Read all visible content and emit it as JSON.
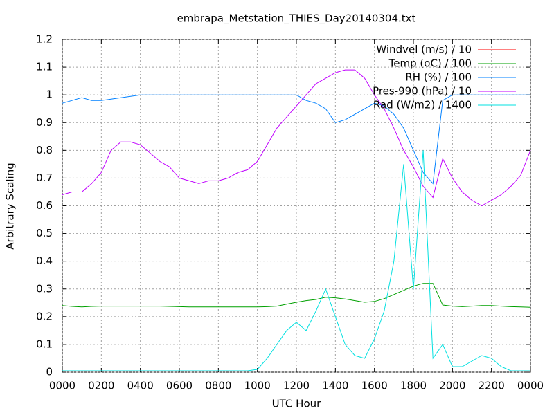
{
  "chart_data": {
    "type": "line",
    "title": "embrapa_Metstation_THIES_Day20140304.txt",
    "xlabel": "UTC Hour",
    "ylabel": "Arbitrary Scaling",
    "x": [
      0,
      0.5,
      1,
      1.5,
      2,
      2.5,
      3,
      3.5,
      4,
      4.5,
      5,
      5.5,
      6,
      6.5,
      7,
      7.5,
      8,
      8.5,
      9,
      9.5,
      10,
      10.5,
      11,
      11.5,
      12,
      12.5,
      13,
      13.5,
      14,
      14.5,
      15,
      15.5,
      16,
      16.5,
      17,
      17.5,
      18,
      18.5,
      19,
      19.5,
      20,
      20.5,
      21,
      21.5,
      22,
      22.5,
      23,
      23.5,
      24
    ],
    "series": [
      {
        "name": "Windvel (m/s) / 10",
        "color": "#ff0000",
        "values": [
          null,
          null,
          null,
          null,
          null,
          null,
          null,
          null,
          null,
          null,
          null,
          null,
          null,
          null,
          null,
          null,
          null,
          null,
          null,
          null,
          null,
          null,
          null,
          null,
          null,
          null,
          null,
          null,
          null,
          null,
          null,
          null,
          null,
          null,
          null,
          null,
          null,
          null,
          null,
          null,
          null,
          null,
          null,
          null,
          null,
          null,
          null,
          null,
          null
        ]
      },
      {
        "name": "Temp (oC) / 100",
        "color": "#00a000",
        "values": [
          0.24,
          0.237,
          0.235,
          0.237,
          0.238,
          0.238,
          0.238,
          0.238,
          0.238,
          0.238,
          0.238,
          0.237,
          0.236,
          0.235,
          0.235,
          0.235,
          0.235,
          0.235,
          0.235,
          0.235,
          0.235,
          0.236,
          0.238,
          0.245,
          0.252,
          0.258,
          0.262,
          0.27,
          0.268,
          0.264,
          0.258,
          0.252,
          0.255,
          0.265,
          0.28,
          0.295,
          0.31,
          0.32,
          0.32,
          0.242,
          0.238,
          0.236,
          0.238,
          0.24,
          0.24,
          0.238,
          0.236,
          0.235,
          0.234
        ]
      },
      {
        "name": "RH (%) / 100",
        "color": "#0080ff",
        "values": [
          0.97,
          0.98,
          0.99,
          0.98,
          0.98,
          0.985,
          0.99,
          0.995,
          1,
          1,
          1,
          1,
          1,
          1,
          1,
          1,
          1,
          1,
          1,
          1,
          1,
          1,
          1,
          1,
          1,
          0.98,
          0.97,
          0.95,
          0.9,
          0.91,
          0.93,
          0.95,
          0.97,
          0.96,
          0.93,
          0.88,
          0.8,
          0.72,
          0.68,
          0.98,
          1,
          1,
          1,
          1,
          1,
          1,
          1,
          1,
          1
        ]
      },
      {
        "name": "Pres-990 (hPa) / 10",
        "color": "#c000ff",
        "values": [
          0.64,
          0.65,
          0.65,
          0.68,
          0.72,
          0.8,
          0.83,
          0.83,
          0.82,
          0.79,
          0.76,
          0.74,
          0.7,
          0.69,
          0.68,
          0.69,
          0.69,
          0.7,
          0.72,
          0.73,
          0.76,
          0.82,
          0.88,
          0.92,
          0.96,
          1,
          1.04,
          1.06,
          1.08,
          1.09,
          1.09,
          1.06,
          1,
          0.95,
          0.88,
          0.8,
          0.74,
          0.67,
          0.63,
          0.77,
          0.7,
          0.65,
          0.62,
          0.6,
          0.62,
          0.64,
          0.67,
          0.71,
          0.8
        ]
      },
      {
        "name": "Rad (W/m2) / 1400",
        "color": "#00e0e0",
        "values": [
          0.005,
          0.005,
          0.005,
          0.005,
          0.005,
          0.005,
          0.005,
          0.005,
          0.005,
          0.005,
          0.005,
          0.005,
          0.005,
          0.005,
          0.005,
          0.005,
          0.005,
          0.005,
          0.005,
          0.005,
          0.01,
          0.05,
          0.1,
          0.15,
          0.18,
          0.15,
          0.22,
          0.3,
          0.2,
          0.1,
          0.06,
          0.05,
          0.12,
          0.22,
          0.4,
          0.75,
          0.3,
          0.8,
          0.05,
          0.1,
          0.02,
          0.02,
          0.04,
          0.06,
          0.05,
          0.02,
          0.005,
          0.005,
          0.005
        ]
      }
    ],
    "xlim": [
      0,
      24
    ],
    "xticks": [
      {
        "value": 0,
        "label": "0000"
      },
      {
        "value": 2,
        "label": "0200"
      },
      {
        "value": 4,
        "label": "0400"
      },
      {
        "value": 6,
        "label": "0600"
      },
      {
        "value": 8,
        "label": "0800"
      },
      {
        "value": 10,
        "label": "1000"
      },
      {
        "value": 12,
        "label": "1200"
      },
      {
        "value": 14,
        "label": "1400"
      },
      {
        "value": 16,
        "label": "1600"
      },
      {
        "value": 18,
        "label": "1800"
      },
      {
        "value": 20,
        "label": "2000"
      },
      {
        "value": 22,
        "label": "2200"
      },
      {
        "value": 24,
        "label": "0000"
      }
    ],
    "ylim": [
      0,
      1.2
    ],
    "yticks": [
      0,
      0.1,
      0.2,
      0.3,
      0.4,
      0.5,
      0.6,
      0.7,
      0.8,
      0.9,
      1,
      1.1,
      1.2
    ],
    "grid": true,
    "legend": "upper right"
  }
}
